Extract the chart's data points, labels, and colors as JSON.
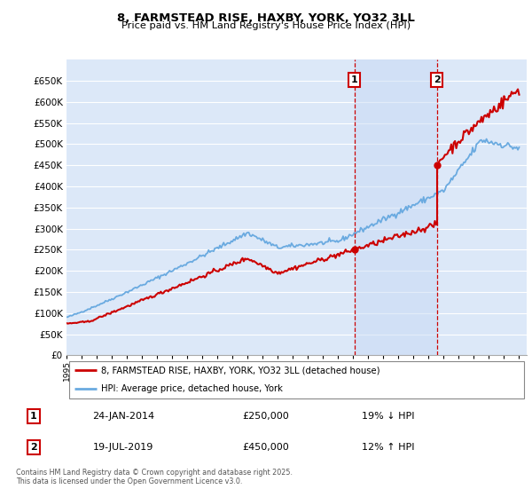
{
  "title": "8, FARMSTEAD RISE, HAXBY, YORK, YO32 3LL",
  "subtitle": "Price paid vs. HM Land Registry's House Price Index (HPI)",
  "legend_label_red": "8, FARMSTEAD RISE, HAXBY, YORK, YO32 3LL (detached house)",
  "legend_label_blue": "HPI: Average price, detached house, York",
  "annotation1_date": "24-JAN-2014",
  "annotation1_price": "£250,000",
  "annotation1_hpi": "19% ↓ HPI",
  "annotation2_date": "19-JUL-2019",
  "annotation2_price": "£450,000",
  "annotation2_hpi": "12% ↑ HPI",
  "footer": "Contains HM Land Registry data © Crown copyright and database right 2025.\nThis data is licensed under the Open Government Licence v3.0.",
  "ylim": [
    0,
    700000
  ],
  "yticks": [
    0,
    50000,
    100000,
    150000,
    200000,
    250000,
    300000,
    350000,
    400000,
    450000,
    500000,
    550000,
    600000,
    650000
  ],
  "background_color": "#ffffff",
  "plot_bg_color": "#dce8f8",
  "grid_color": "#ffffff",
  "shade_color": "#c8daf5",
  "red_color": "#cc0000",
  "blue_color": "#6aaae0",
  "vline_color": "#cc0000",
  "sale1_year": 2014.07,
  "sale1_price": 250000,
  "sale2_year": 2019.55,
  "sale2_price": 450000
}
